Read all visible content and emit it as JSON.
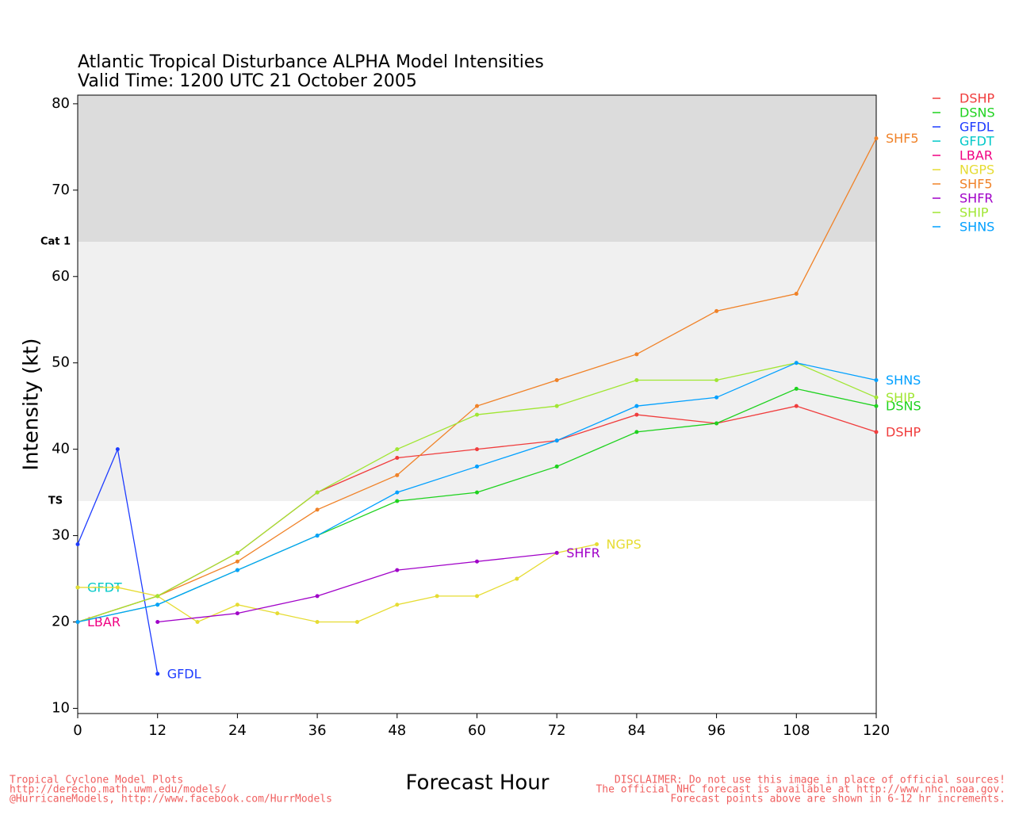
{
  "chart_data": {
    "type": "line",
    "title": "Atlantic Tropical Disturbance ALPHA Model Intensities",
    "subtitle": "Valid Time: 1200 UTC 21 October 2005",
    "x_label": "Forecast Hour",
    "y_label": "Intensity (kt)",
    "xlim": [
      0,
      120
    ],
    "ylim": [
      9.4,
      81
    ],
    "xticks": [
      0,
      12,
      24,
      36,
      48,
      60,
      72,
      84,
      96,
      108,
      120
    ],
    "yticks": [
      10,
      20,
      30,
      40,
      50,
      60,
      70,
      80
    ],
    "bands": [
      {
        "value": 64,
        "label": "Cat 1"
      },
      {
        "value": 34,
        "label": "TS"
      }
    ],
    "band_colors": [
      "#dcdcdc",
      "#f0f0f0"
    ],
    "series": [
      {
        "name": "DSHP",
        "color": "#f03c3c",
        "x": [
          0,
          12,
          24,
          36,
          48,
          60,
          72,
          84,
          96,
          108,
          120
        ],
        "values": [
          20,
          23,
          28,
          35,
          39,
          40,
          41,
          44,
          43,
          45,
          42
        ]
      },
      {
        "name": "DSNS",
        "color": "#1ed21e",
        "x": [
          0,
          12,
          24,
          36,
          48,
          60,
          72,
          84,
          96,
          108,
          120
        ],
        "values": [
          20,
          22,
          26,
          30,
          34,
          35,
          38,
          42,
          43,
          47,
          45
        ]
      },
      {
        "name": "GFDL",
        "color": "#1e3cff",
        "x": [
          0,
          6,
          12
        ],
        "values": [
          29,
          40,
          14
        ]
      },
      {
        "name": "GFDT",
        "color": "#00c8c8",
        "x": [
          0
        ],
        "values": [
          24
        ]
      },
      {
        "name": "LBAR",
        "color": "#f00082",
        "x": [
          0
        ],
        "values": [
          20
        ]
      },
      {
        "name": "NGPS",
        "color": "#e6dc32",
        "x": [
          0,
          6,
          12,
          18,
          24,
          30,
          36,
          42,
          48,
          54,
          60,
          66,
          72,
          78
        ],
        "values": [
          24,
          24,
          23,
          20,
          22,
          21,
          20,
          20,
          22,
          23,
          23,
          25,
          28,
          29
        ]
      },
      {
        "name": "SHF5",
        "color": "#f08228",
        "x": [
          0,
          12,
          24,
          36,
          48,
          60,
          72,
          84,
          96,
          108,
          120
        ],
        "values": [
          20,
          23,
          27,
          33,
          37,
          45,
          48,
          51,
          56,
          58,
          76
        ]
      },
      {
        "name": "SHFR",
        "color": "#a000c8",
        "x": [
          12,
          24,
          36,
          48,
          60,
          72
        ],
        "values": [
          20,
          21,
          23,
          26,
          27,
          28
        ]
      },
      {
        "name": "SHIP",
        "color": "#a0e632",
        "x": [
          0,
          12,
          24,
          36,
          48,
          60,
          72,
          84,
          96,
          108,
          120
        ],
        "values": [
          20,
          23,
          28,
          35,
          40,
          44,
          45,
          48,
          48,
          50,
          46
        ]
      },
      {
        "name": "SHNS",
        "color": "#00a0ff",
        "x": [
          0,
          12,
          24,
          36,
          48,
          60,
          72,
          84,
          96,
          108,
          120
        ],
        "values": [
          20,
          22,
          26,
          30,
          35,
          38,
          41,
          45,
          46,
          50,
          48
        ]
      }
    ],
    "footer_left": [
      "Tropical Cyclone Model Plots",
      "http://derecho.math.uwm.edu/models/",
      "@HurricaneModels, http://www.facebook.com/HurrModels"
    ],
    "footer_right": [
      "DISCLAIMER: Do not use this image in place of official sources!",
      "The official NHC forecast is available at http://www.nhc.noaa.gov.",
      "Forecast points above are shown in 6-12 hr increments."
    ]
  }
}
